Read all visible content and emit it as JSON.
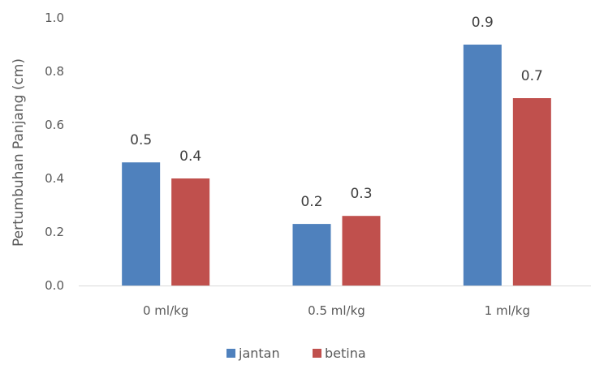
{
  "chart_data": {
    "type": "bar",
    "title": "",
    "xlabel": "",
    "ylabel": "Pertumbuhan Panjang (cm)",
    "categories": [
      "0 ml/kg",
      "0.5 ml/kg",
      "1 ml/kg"
    ],
    "series": [
      {
        "name": "jantan",
        "values": [
          0.46,
          0.23,
          0.9
        ],
        "labels": [
          "0.5",
          "0.2",
          "0.9"
        ],
        "color": "#4f81bd"
      },
      {
        "name": "betina",
        "values": [
          0.4,
          0.26,
          0.7
        ],
        "labels": [
          "0.4",
          "0.3",
          "0.7"
        ],
        "color": "#c0504d"
      }
    ],
    "ylim": [
      0,
      1.0
    ],
    "yticks": [
      "0.0",
      "0.2",
      "0.4",
      "0.6",
      "0.8",
      "1.0"
    ],
    "grid": false,
    "legend_position": "bottom"
  }
}
